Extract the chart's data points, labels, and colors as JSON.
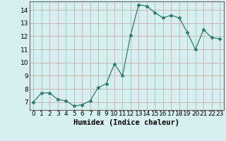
{
  "x": [
    0,
    1,
    2,
    3,
    4,
    5,
    6,
    7,
    8,
    9,
    10,
    11,
    12,
    13,
    14,
    15,
    16,
    17,
    18,
    19,
    20,
    21,
    22,
    23
  ],
  "y": [
    7.0,
    7.7,
    7.7,
    7.2,
    7.1,
    6.7,
    6.8,
    7.1,
    8.1,
    8.4,
    9.9,
    9.0,
    12.1,
    14.4,
    14.3,
    13.8,
    13.4,
    13.6,
    13.4,
    12.3,
    11.0,
    12.5,
    11.9,
    11.8
  ],
  "title": "",
  "xlabel": "Humidex (Indice chaleur)",
  "ylabel": "",
  "xlim": [
    -0.5,
    23.5
  ],
  "ylim": [
    6.4,
    14.65
  ],
  "yticks": [
    7,
    8,
    9,
    10,
    11,
    12,
    13,
    14
  ],
  "xticks": [
    0,
    1,
    2,
    3,
    4,
    5,
    6,
    7,
    8,
    9,
    10,
    11,
    12,
    13,
    14,
    15,
    16,
    17,
    18,
    19,
    20,
    21,
    22,
    23
  ],
  "line_color": "#2e7d6e",
  "marker": "D",
  "marker_size": 2.5,
  "bg_color": "#d6f0ef",
  "grid_color": "#c8b8b8",
  "label_fontsize": 7.5,
  "tick_fontsize": 6.5,
  "spine_color": "#666666"
}
